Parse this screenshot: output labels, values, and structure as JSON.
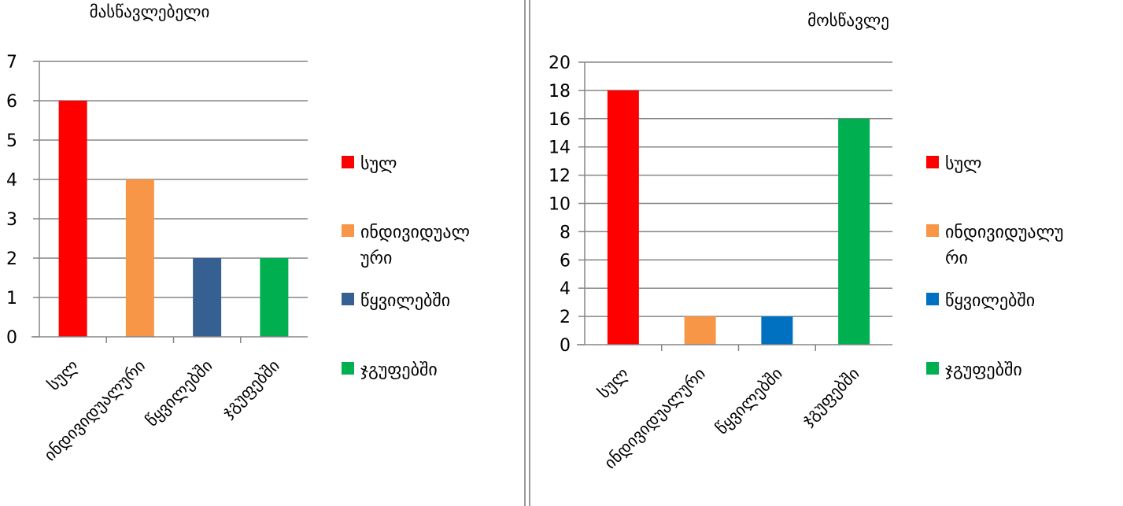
{
  "chart_data": [
    {
      "type": "bar",
      "title": "მასწავლებელი",
      "categories": [
        "სულ",
        "ინდივიდუალური",
        "წყვილებში",
        "ჯგუფებში"
      ],
      "values": [
        6,
        4,
        2,
        2
      ],
      "colors": [
        "#ff0000",
        "#f79646",
        "#376092",
        "#00b050"
      ],
      "ylim": [
        0,
        7
      ],
      "yticks": [
        "0",
        "1",
        "2",
        "3",
        "4",
        "5",
        "6",
        "7"
      ],
      "grid": true,
      "legend_position": "right",
      "legend": [
        "სულ",
        "ინდივიდუალ",
        "ური",
        "წყვილებში",
        "ჯგუფებში"
      ]
    },
    {
      "type": "bar",
      "title": "მოსწავლე",
      "categories": [
        "სულ",
        "ინდივიდუალური",
        "წყვილებში",
        "ჯგუფებში"
      ],
      "values": [
        18,
        2,
        2,
        16
      ],
      "colors": [
        "#ff0000",
        "#f79646",
        "#0070c0",
        "#00b050"
      ],
      "ylim": [
        0,
        20
      ],
      "yticks": [
        "0",
        "2",
        "4",
        "6",
        "8",
        "10",
        "12",
        "14",
        "16",
        "18",
        "20"
      ],
      "grid": true,
      "legend_position": "right",
      "legend": [
        "სულ",
        "ინდივიდუალუ",
        "რი",
        "წყვილებში",
        "ჯგუფებში"
      ]
    }
  ]
}
